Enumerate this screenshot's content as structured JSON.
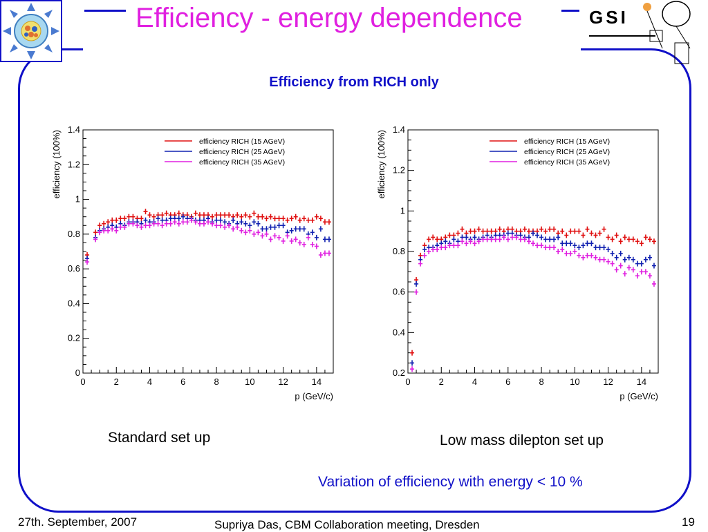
{
  "title": "Efficiency - energy dependence",
  "subtitle": "Efficiency from RICH only",
  "captions": {
    "left": "Standard set up",
    "right": "Low mass dilepton set up"
  },
  "note": "Variation of efficiency with energy < 10 %",
  "footer": {
    "date": "27th. September, 2007",
    "center": "Supriya Das, CBM Collaboration meeting, Dresden",
    "page": "19"
  },
  "logos": {
    "gsi_text": "GSI"
  },
  "colors": {
    "title": "#e020e0",
    "accent": "#1010c8",
    "red": "#e01010",
    "blue": "#1020b0",
    "magenta": "#e020e0"
  },
  "chart_data": [
    {
      "type": "scatter",
      "title": "",
      "xlabel": "p (GeV/c)",
      "ylabel": "efficiency (100%)",
      "xlim": [
        0,
        15
      ],
      "ylim": [
        0,
        1.4
      ],
      "xticks": [
        0,
        2,
        4,
        6,
        8,
        10,
        12,
        14
      ],
      "yticks": [
        0,
        0.2,
        0.4,
        0.6,
        0.8,
        1,
        1.2,
        1.4
      ],
      "legend_position": "top-right",
      "x": [
        0.25,
        0.75,
        1.0,
        1.25,
        1.5,
        1.75,
        2.0,
        2.25,
        2.5,
        2.75,
        3.0,
        3.25,
        3.5,
        3.75,
        4.0,
        4.25,
        4.5,
        4.75,
        5.0,
        5.25,
        5.5,
        5.75,
        6.0,
        6.25,
        6.5,
        6.75,
        7.0,
        7.25,
        7.5,
        7.75,
        8.0,
        8.25,
        8.5,
        8.75,
        9.0,
        9.25,
        9.5,
        9.75,
        10.0,
        10.25,
        10.5,
        10.75,
        11.0,
        11.25,
        11.5,
        11.75,
        12.0,
        12.25,
        12.5,
        12.75,
        13.0,
        13.25,
        13.5,
        13.75,
        14.0,
        14.25,
        14.5,
        14.75
      ],
      "series": [
        {
          "name": "efficiency RICH (15 AGeV)",
          "color": "#e01010",
          "values": [
            0.68,
            0.81,
            0.85,
            0.86,
            0.87,
            0.88,
            0.88,
            0.89,
            0.89,
            0.9,
            0.9,
            0.89,
            0.89,
            0.93,
            0.91,
            0.9,
            0.91,
            0.91,
            0.92,
            0.91,
            0.91,
            0.92,
            0.91,
            0.91,
            0.9,
            0.92,
            0.91,
            0.91,
            0.91,
            0.9,
            0.91,
            0.91,
            0.91,
            0.91,
            0.9,
            0.91,
            0.9,
            0.91,
            0.9,
            0.92,
            0.9,
            0.9,
            0.89,
            0.9,
            0.89,
            0.89,
            0.89,
            0.88,
            0.89,
            0.9,
            0.88,
            0.89,
            0.88,
            0.88,
            0.9,
            0.89,
            0.87,
            0.87
          ]
        },
        {
          "name": "efficiency RICH (25 AGeV)",
          "color": "#1020b0",
          "values": [
            0.66,
            0.78,
            0.82,
            0.83,
            0.84,
            0.85,
            0.84,
            0.86,
            0.85,
            0.87,
            0.87,
            0.87,
            0.86,
            0.88,
            0.87,
            0.87,
            0.89,
            0.88,
            0.88,
            0.89,
            0.89,
            0.89,
            0.9,
            0.89,
            0.89,
            0.88,
            0.88,
            0.88,
            0.89,
            0.87,
            0.88,
            0.88,
            0.87,
            0.86,
            0.88,
            0.86,
            0.87,
            0.86,
            0.85,
            0.87,
            0.86,
            0.83,
            0.83,
            0.84,
            0.84,
            0.85,
            0.85,
            0.81,
            0.82,
            0.83,
            0.83,
            0.83,
            0.8,
            0.81,
            0.78,
            0.83,
            0.77,
            0.77
          ]
        },
        {
          "name": "efficiency RICH (35 AGeV)",
          "color": "#e020e0",
          "values": [
            0.64,
            0.77,
            0.81,
            0.82,
            0.82,
            0.83,
            0.82,
            0.84,
            0.84,
            0.86,
            0.86,
            0.85,
            0.84,
            0.85,
            0.85,
            0.86,
            0.86,
            0.85,
            0.86,
            0.86,
            0.87,
            0.86,
            0.87,
            0.87,
            0.88,
            0.87,
            0.86,
            0.86,
            0.87,
            0.86,
            0.85,
            0.85,
            0.84,
            0.85,
            0.83,
            0.84,
            0.82,
            0.81,
            0.82,
            0.8,
            0.81,
            0.79,
            0.8,
            0.77,
            0.79,
            0.78,
            0.76,
            0.79,
            0.76,
            0.77,
            0.75,
            0.74,
            0.78,
            0.74,
            0.73,
            0.68,
            0.69,
            0.69
          ]
        }
      ]
    },
    {
      "type": "scatter",
      "title": "",
      "xlabel": "p (GeV/c)",
      "ylabel": "efficiency (100%)",
      "xlim": [
        0,
        15
      ],
      "ylim": [
        0.2,
        1.4
      ],
      "xticks": [
        0,
        2,
        4,
        6,
        8,
        10,
        12,
        14
      ],
      "yticks": [
        0.2,
        0.4,
        0.6,
        0.8,
        1,
        1.2,
        1.4
      ],
      "legend_position": "top-right",
      "x": [
        0.25,
        0.5,
        0.75,
        1.0,
        1.25,
        1.5,
        1.75,
        2.0,
        2.25,
        2.5,
        2.75,
        3.0,
        3.25,
        3.5,
        3.75,
        4.0,
        4.25,
        4.5,
        4.75,
        5.0,
        5.25,
        5.5,
        5.75,
        6.0,
        6.25,
        6.5,
        6.75,
        7.0,
        7.25,
        7.5,
        7.75,
        8.0,
        8.25,
        8.5,
        8.75,
        9.0,
        9.25,
        9.5,
        9.75,
        10.0,
        10.25,
        10.5,
        10.75,
        11.0,
        11.25,
        11.5,
        11.75,
        12.0,
        12.25,
        12.5,
        12.75,
        13.0,
        13.25,
        13.5,
        13.75,
        14.0,
        14.25,
        14.5,
        14.75
      ],
      "series": [
        {
          "name": "efficiency RICH (15 AGeV)",
          "color": "#e01010",
          "values": [
            0.3,
            0.66,
            0.78,
            0.83,
            0.86,
            0.87,
            0.86,
            0.86,
            0.87,
            0.88,
            0.88,
            0.89,
            0.91,
            0.89,
            0.9,
            0.9,
            0.91,
            0.9,
            0.9,
            0.9,
            0.9,
            0.91,
            0.9,
            0.91,
            0.91,
            0.9,
            0.9,
            0.91,
            0.9,
            0.9,
            0.9,
            0.91,
            0.9,
            0.91,
            0.91,
            0.89,
            0.9,
            0.88,
            0.9,
            0.9,
            0.9,
            0.88,
            0.91,
            0.89,
            0.88,
            0.89,
            0.91,
            0.87,
            0.86,
            0.88,
            0.85,
            0.87,
            0.86,
            0.86,
            0.85,
            0.84,
            0.87,
            0.86,
            0.85
          ]
        },
        {
          "name": "efficiency RICH (25 AGeV)",
          "color": "#1020b0",
          "values": [
            0.25,
            0.64,
            0.76,
            0.81,
            0.82,
            0.82,
            0.83,
            0.84,
            0.85,
            0.84,
            0.86,
            0.85,
            0.87,
            0.87,
            0.86,
            0.87,
            0.86,
            0.87,
            0.88,
            0.87,
            0.88,
            0.88,
            0.88,
            0.89,
            0.89,
            0.88,
            0.88,
            0.87,
            0.87,
            0.89,
            0.88,
            0.87,
            0.86,
            0.86,
            0.86,
            0.87,
            0.84,
            0.84,
            0.84,
            0.83,
            0.82,
            0.83,
            0.84,
            0.84,
            0.82,
            0.82,
            0.82,
            0.81,
            0.79,
            0.77,
            0.79,
            0.76,
            0.77,
            0.76,
            0.74,
            0.74,
            0.76,
            0.77,
            0.73
          ]
        },
        {
          "name": "efficiency RICH (35 AGeV)",
          "color": "#e020e0",
          "values": [
            0.22,
            0.6,
            0.74,
            0.78,
            0.8,
            0.81,
            0.81,
            0.82,
            0.82,
            0.83,
            0.83,
            0.83,
            0.85,
            0.84,
            0.85,
            0.84,
            0.85,
            0.86,
            0.86,
            0.86,
            0.86,
            0.86,
            0.87,
            0.86,
            0.87,
            0.87,
            0.86,
            0.86,
            0.85,
            0.84,
            0.83,
            0.83,
            0.82,
            0.82,
            0.82,
            0.8,
            0.81,
            0.79,
            0.79,
            0.8,
            0.78,
            0.77,
            0.78,
            0.78,
            0.77,
            0.76,
            0.76,
            0.75,
            0.74,
            0.71,
            0.73,
            0.69,
            0.72,
            0.71,
            0.68,
            0.7,
            0.7,
            0.68,
            0.64
          ]
        }
      ]
    }
  ]
}
